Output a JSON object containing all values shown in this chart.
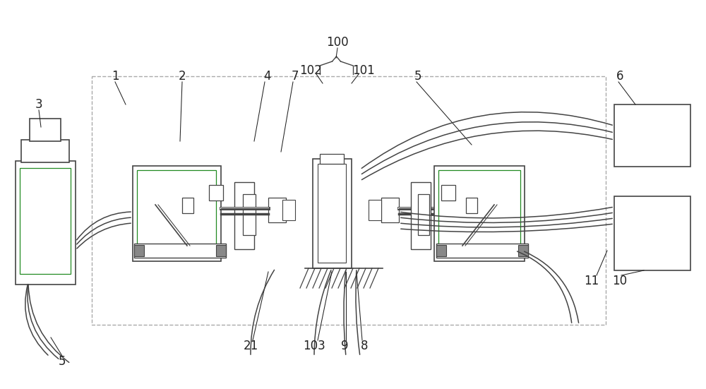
{
  "bg_color": "#ffffff",
  "lc": "#444444",
  "dc": "#aaaaaa",
  "gc": "#888888",
  "green": "#228B22",
  "figsize": [
    10.0,
    5.51
  ],
  "dpi": 100
}
